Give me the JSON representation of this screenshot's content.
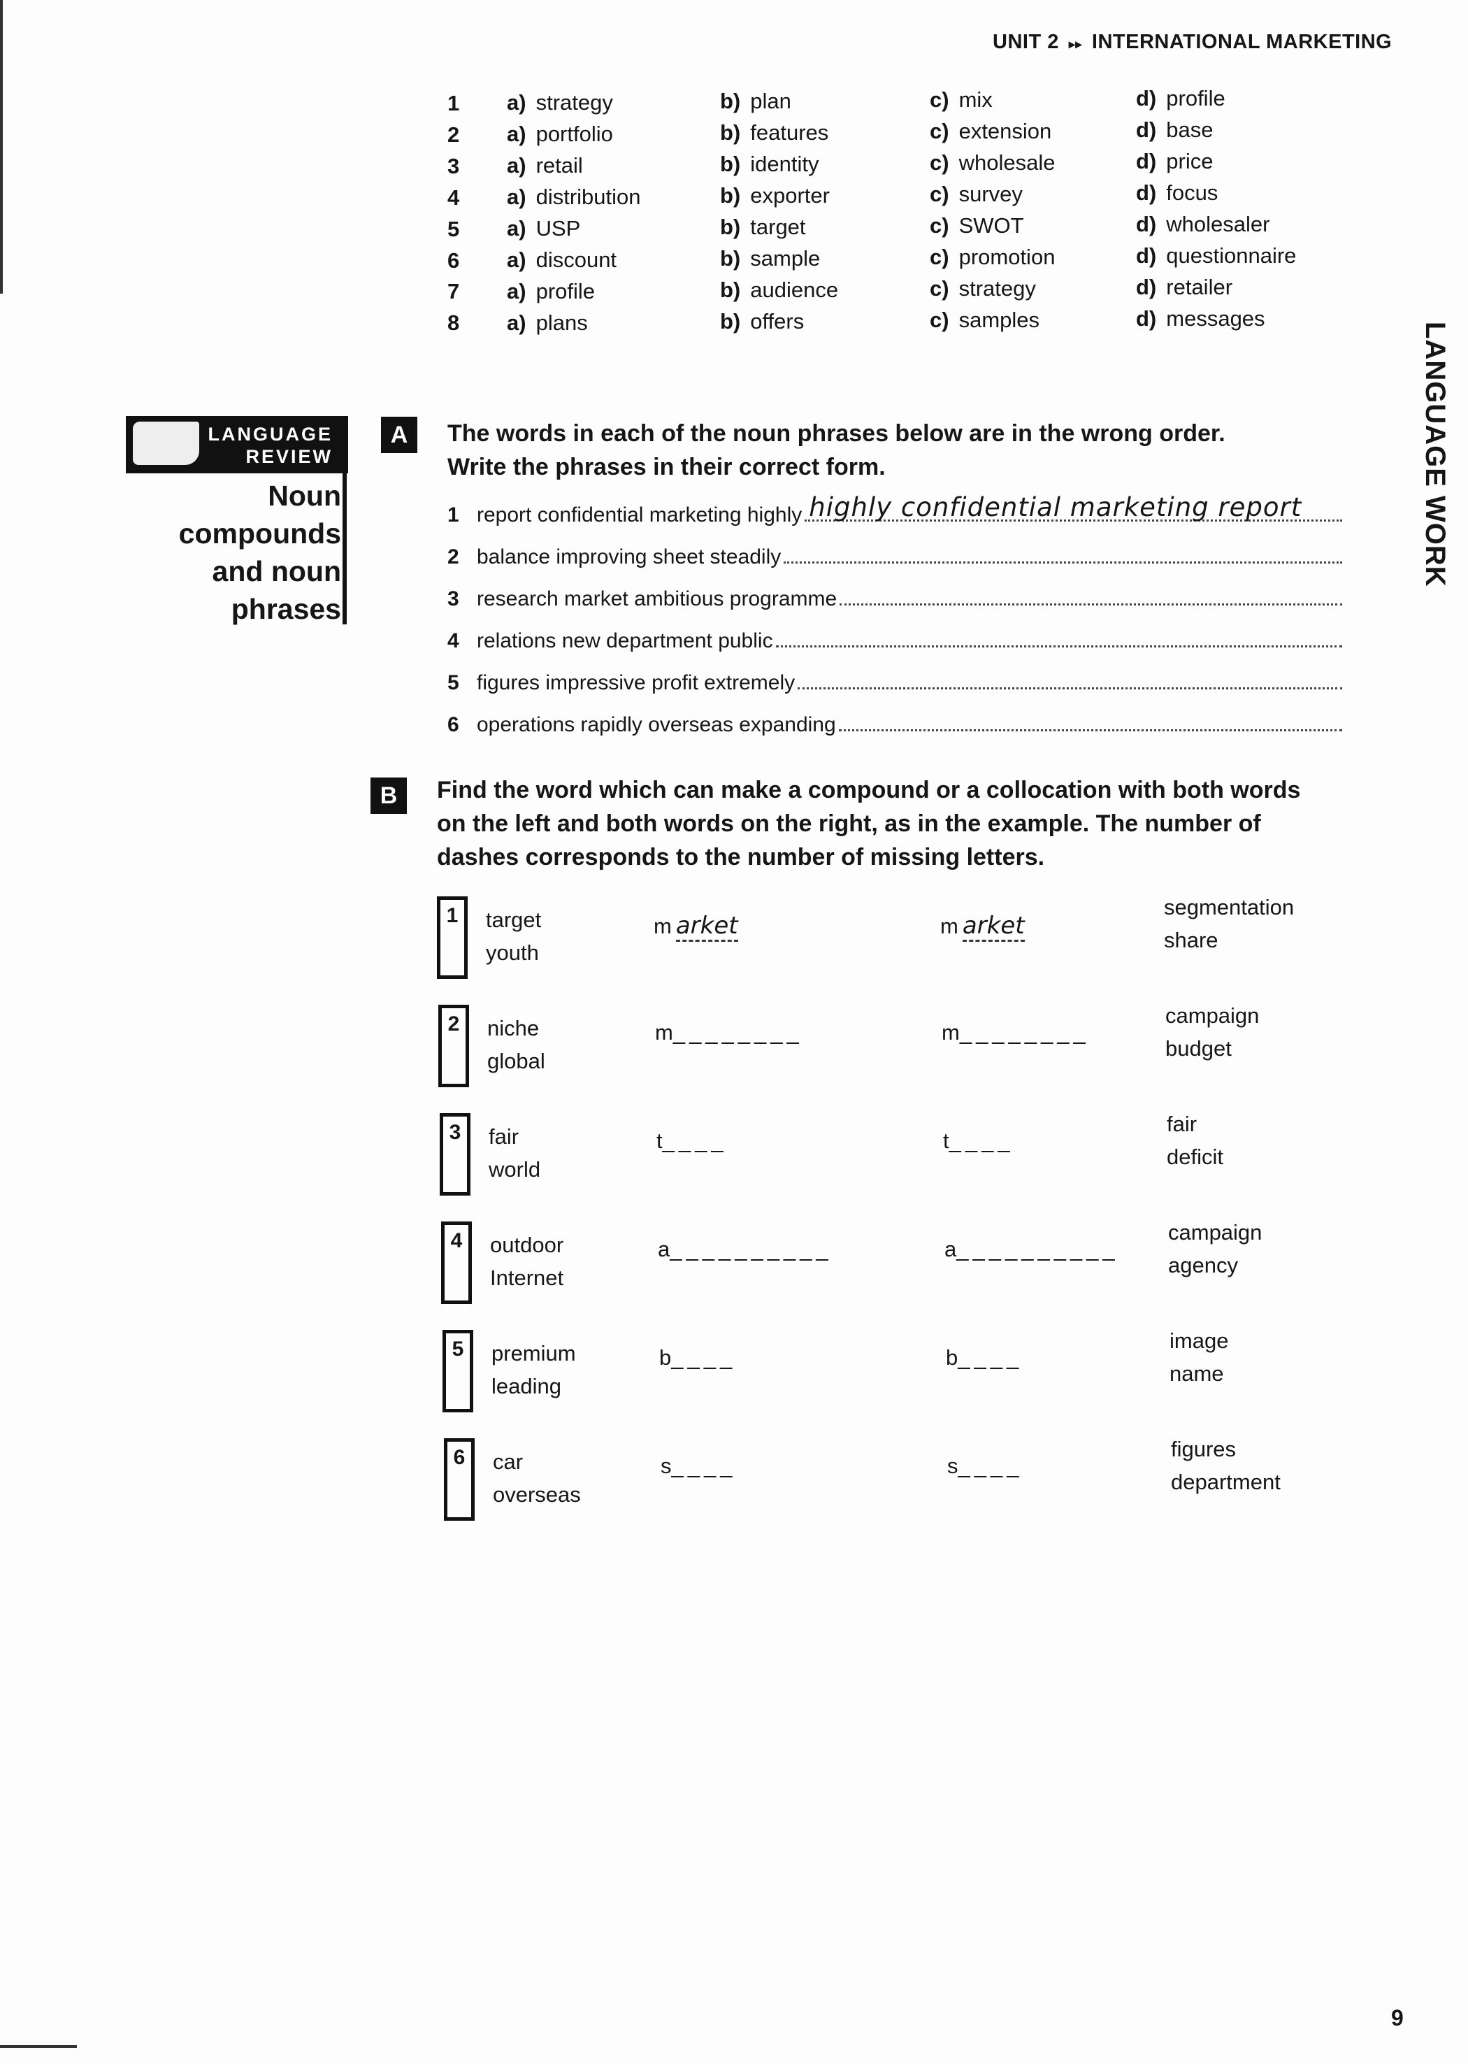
{
  "header": {
    "unit": "UNIT 2",
    "arrow": "▸▸",
    "title": "INTERNATIONAL MARKETING"
  },
  "side_tab": "LANGUAGE WORK",
  "page_number": "9",
  "options": [
    {
      "n": "1",
      "a": "strategy",
      "b": "plan",
      "c": "mix",
      "d": "profile"
    },
    {
      "n": "2",
      "a": "portfolio",
      "b": "features",
      "c": "extension",
      "d": "base"
    },
    {
      "n": "3",
      "a": "retail",
      "b": "identity",
      "c": "wholesale",
      "d": "price"
    },
    {
      "n": "4",
      "a": "distribution",
      "b": "exporter",
      "c": "survey",
      "d": "focus"
    },
    {
      "n": "5",
      "a": "USP",
      "b": "target",
      "c": "SWOT",
      "d": "wholesaler"
    },
    {
      "n": "6",
      "a": "discount",
      "b": "sample",
      "c": "promotion",
      "d": "questionnaire"
    },
    {
      "n": "7",
      "a": "profile",
      "b": "audience",
      "c": "strategy",
      "d": "retailer"
    },
    {
      "n": "8",
      "a": "plans",
      "b": "offers",
      "c": "samples",
      "d": "messages"
    }
  ],
  "option_letters": {
    "a": "a)",
    "b": "b)",
    "c": "c)",
    "d": "d)"
  },
  "language_review": {
    "label_line1": "LANGUAGE",
    "label_line2": "REVIEW",
    "title_lines": [
      "Noun",
      "compounds",
      "and noun",
      "phrases"
    ]
  },
  "section_a": {
    "letter": "A",
    "instruction_line1": "The words in each of the noun phrases below are in the wrong order.",
    "instruction_line2": "Write the phrases in their correct form.",
    "items": [
      {
        "n": "1",
        "text": "report confidential marketing highly",
        "answer": "highly confidential marketing report"
      },
      {
        "n": "2",
        "text": "balance improving sheet steadily",
        "answer": ""
      },
      {
        "n": "3",
        "text": "research market ambitious programme",
        "answer": ""
      },
      {
        "n": "4",
        "text": "relations new department public",
        "answer": ""
      },
      {
        "n": "5",
        "text": "figures impressive profit extremely",
        "answer": ""
      },
      {
        "n": "6",
        "text": "operations rapidly overseas expanding",
        "answer": ""
      }
    ]
  },
  "section_b": {
    "letter": "B",
    "instruction_lines": [
      "Find the word which can make a compound or a collocation with both words",
      "on the left and both words on the right, as in the example. The number of",
      "dashes corresponds to the number of missing letters."
    ],
    "items": [
      {
        "n": "1",
        "left": [
          "target",
          "youth"
        ],
        "first": "m",
        "fill": "arket",
        "dashes": "",
        "right": [
          "segmentation",
          "share"
        ]
      },
      {
        "n": "2",
        "left": [
          "niche",
          "global"
        ],
        "first": "m",
        "fill": "",
        "dashes": "________",
        "right": [
          "campaign",
          "budget"
        ]
      },
      {
        "n": "3",
        "left": [
          "fair",
          "world"
        ],
        "first": "t",
        "fill": "",
        "dashes": "____",
        "right": [
          "fair",
          "deficit"
        ]
      },
      {
        "n": "4",
        "left": [
          "outdoor",
          "Internet"
        ],
        "first": "a",
        "fill": "",
        "dashes": "__________",
        "right": [
          "campaign",
          "agency"
        ]
      },
      {
        "n": "5",
        "left": [
          "premium",
          "leading"
        ],
        "first": "b",
        "fill": "",
        "dashes": "____",
        "right": [
          "image",
          "name"
        ]
      },
      {
        "n": "6",
        "left": [
          "car",
          "overseas"
        ],
        "first": "s",
        "fill": "",
        "dashes": "____",
        "right": [
          "figures",
          "department"
        ]
      }
    ]
  }
}
